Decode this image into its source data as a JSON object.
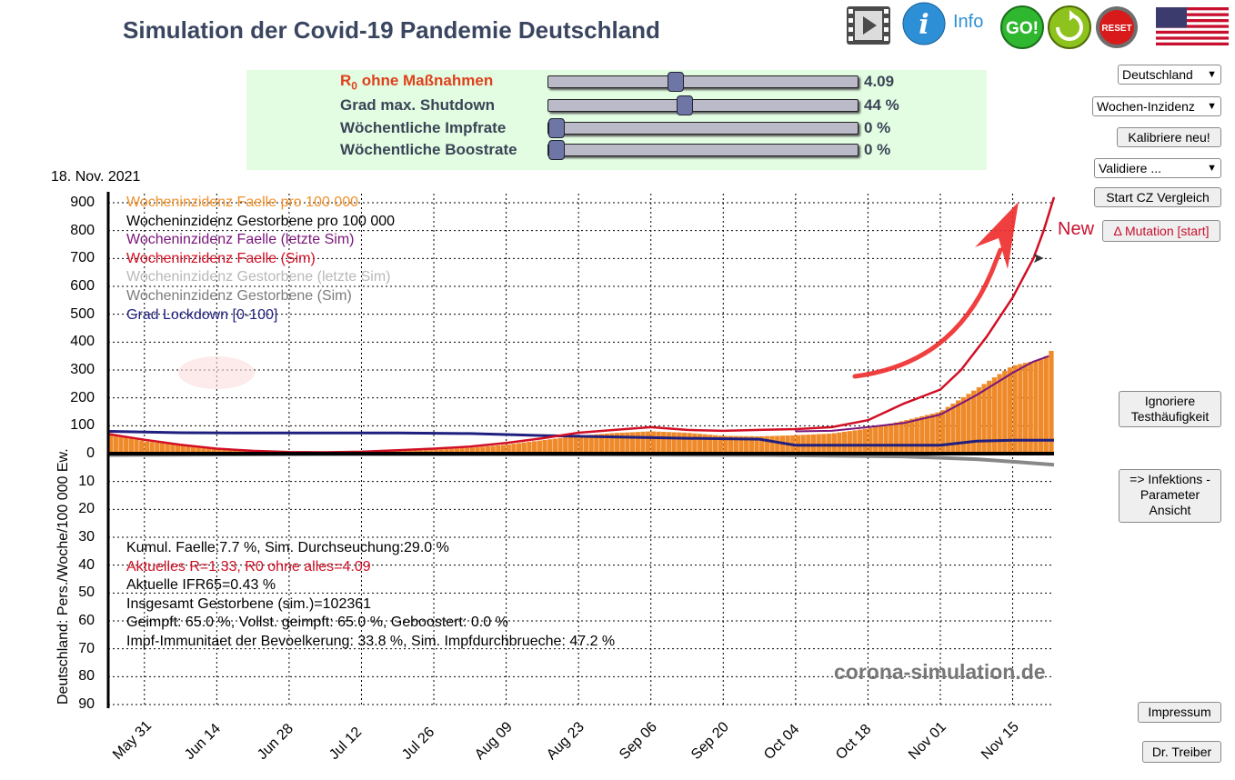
{
  "title": "Simulation der Covid-19 Pandemie Deutschland",
  "header": {
    "info_label": "Info",
    "go_label": "GO!",
    "reset_label": "RESET"
  },
  "sliders": [
    {
      "label_main": "R",
      "label_sub": "0",
      "label_rest": " ohne Maßnahmen",
      "value": "4.09",
      "fraction": 0.41
    },
    {
      "label": "Grad max. Shutdown",
      "value": "44 %",
      "fraction": 0.44
    },
    {
      "label": "Wöchentliche Impfrate",
      "value": "0 %",
      "fraction": 0
    },
    {
      "label": "Wöchentliche Boostrate",
      "value": "0 %",
      "fraction": 0
    }
  ],
  "date": "18. Nov. 2021",
  "sidebar": {
    "country": "Deutschland",
    "mode": "Wochen-Inzidenz",
    "calibrate": "Kalibriere neu!",
    "validate": "Validiere ...",
    "cz_compare": "Start CZ Vergleich",
    "new_label": "New",
    "mutation": "Δ Mutation [start]",
    "ignore_1": "Ignoriere",
    "ignore_2": "Testhäufigkeit",
    "infect_1": "=> Infektions -",
    "infect_2": "Parameter",
    "infect_3": "Ansicht",
    "impressum": "Impressum",
    "author": "Dr. Treiber"
  },
  "legend": [
    {
      "text": "Wocheninzidenz Faelle pro 100 000",
      "color": "#f0902a"
    },
    {
      "text": "Wocheninzidenz Gestorbene pro 100 000",
      "color": "#000000"
    },
    {
      "text": "Wocheninzidenz Faelle (letzte Sim)",
      "color": "#7a157a"
    },
    {
      "text": "Wocheninzidenz Faelle (Sim)",
      "color": "#d10f25"
    },
    {
      "text": "Wocheninzidenz Gestorbene (letzte Sim)",
      "color": "#b8b8b8"
    },
    {
      "text": "Wocheninzidenz Gestorbene (Sim)",
      "color": "#7c7c7c"
    },
    {
      "text": "Grad Lockdown [0-100]",
      "color": "#1f1f7f"
    }
  ],
  "info_lines": [
    {
      "text": "Kumul. Faelle:7.7 %, Sim. Durchseuchung:29.0 %",
      "color": "#000000"
    },
    {
      "text": "Aktuelles R=1.33,  R0 ohne alles=4.09",
      "color": "#d10f25"
    },
    {
      "text": "Aktuelle IFR65=0.43 %",
      "color": "#000000"
    },
    {
      "text": "Insgesamt Gestorbene (sim.)=102361",
      "color": "#000000"
    },
    {
      "text": "Geimpft: 65.0 %, Vollst. geimpft: 65.0 %, Geboostert: 0.0 %",
      "color": "#000000"
    },
    {
      "text": "Impf-Immunitaet der Bevoelkerung: 33.8 %, Sim. Impfdurchbrueche: 47.2 %",
      "color": "#000000"
    }
  ],
  "watermark": "corona-simulation.de",
  "chart_data": {
    "type": "bar",
    "ylabel": "Deutschland: Pers./Woche/100 000 Ew.",
    "y_ticks_upper": [
      "900",
      "800",
      "700",
      "600",
      "500",
      "400",
      "300",
      "200",
      "100",
      "0"
    ],
    "y_ticks_lower": [
      "10",
      "20",
      "30",
      "40",
      "50",
      "60",
      "70",
      "80",
      "90"
    ],
    "ylim_upper": [
      0,
      900
    ],
    "ylim_lower": [
      0,
      90
    ],
    "x_ticks": [
      "May 31",
      "Jun 14",
      "Jun 28",
      "Jul 12",
      "Jul 26",
      "Aug 09",
      "Aug 23",
      "Sep 06",
      "Sep 20",
      "Oct 04",
      "Oct 18",
      "Nov 01",
      "Nov 15"
    ],
    "x_tick_days": [
      7,
      21,
      35,
      49,
      63,
      77,
      91,
      105,
      119,
      133,
      147,
      161,
      175
    ],
    "x_range_days": [
      0,
      183
    ],
    "cases_weekly": [
      [
        0,
        75
      ],
      [
        7,
        45
      ],
      [
        14,
        30
      ],
      [
        21,
        17
      ],
      [
        28,
        10
      ],
      [
        35,
        6
      ],
      [
        42,
        5
      ],
      [
        49,
        6
      ],
      [
        56,
        9
      ],
      [
        63,
        14
      ],
      [
        70,
        21
      ],
      [
        77,
        32
      ],
      [
        84,
        48
      ],
      [
        91,
        64
      ],
      [
        98,
        74
      ],
      [
        105,
        80
      ],
      [
        112,
        75
      ],
      [
        119,
        64
      ],
      [
        126,
        62
      ],
      [
        133,
        66
      ],
      [
        140,
        72
      ],
      [
        147,
        90
      ],
      [
        154,
        118
      ],
      [
        161,
        150
      ],
      [
        168,
        232
      ],
      [
        175,
        315
      ],
      [
        181,
        340
      ],
      [
        183,
        378
      ]
    ],
    "sim_cases": [
      [
        0,
        70
      ],
      [
        7,
        50
      ],
      [
        14,
        32
      ],
      [
        21,
        18
      ],
      [
        28,
        10
      ],
      [
        35,
        6
      ],
      [
        42,
        5
      ],
      [
        49,
        7
      ],
      [
        56,
        12
      ],
      [
        63,
        18
      ],
      [
        70,
        25
      ],
      [
        77,
        38
      ],
      [
        84,
        55
      ],
      [
        91,
        75
      ],
      [
        98,
        85
      ],
      [
        105,
        95
      ],
      [
        112,
        85
      ],
      [
        119,
        82
      ],
      [
        126,
        85
      ],
      [
        133,
        88
      ],
      [
        140,
        95
      ],
      [
        147,
        120
      ],
      [
        154,
        180
      ],
      [
        161,
        230
      ],
      [
        165,
        300
      ],
      [
        170,
        420
      ],
      [
        175,
        560
      ],
      [
        179,
        700
      ],
      [
        181,
        800
      ],
      [
        183,
        920
      ]
    ],
    "last_sim_cases": [
      [
        133,
        80
      ],
      [
        140,
        82
      ],
      [
        147,
        95
      ],
      [
        154,
        110
      ],
      [
        161,
        140
      ],
      [
        168,
        210
      ],
      [
        175,
        290
      ],
      [
        179,
        330
      ],
      [
        182,
        350
      ]
    ],
    "lockdown": [
      [
        0,
        80
      ],
      [
        14,
        75
      ],
      [
        28,
        74
      ],
      [
        42,
        74
      ],
      [
        56,
        74
      ],
      [
        70,
        72
      ],
      [
        84,
        65
      ],
      [
        98,
        60
      ],
      [
        112,
        55
      ],
      [
        126,
        52
      ],
      [
        133,
        30
      ],
      [
        147,
        30
      ],
      [
        161,
        30
      ],
      [
        168,
        45
      ],
      [
        175,
        48
      ],
      [
        183,
        48
      ]
    ],
    "sim_deaths": [
      [
        0,
        0.5
      ],
      [
        42,
        0.2
      ],
      [
        84,
        0.3
      ],
      [
        126,
        0.5
      ],
      [
        154,
        1
      ],
      [
        168,
        2
      ],
      [
        176,
        3
      ],
      [
        183,
        4
      ]
    ]
  }
}
